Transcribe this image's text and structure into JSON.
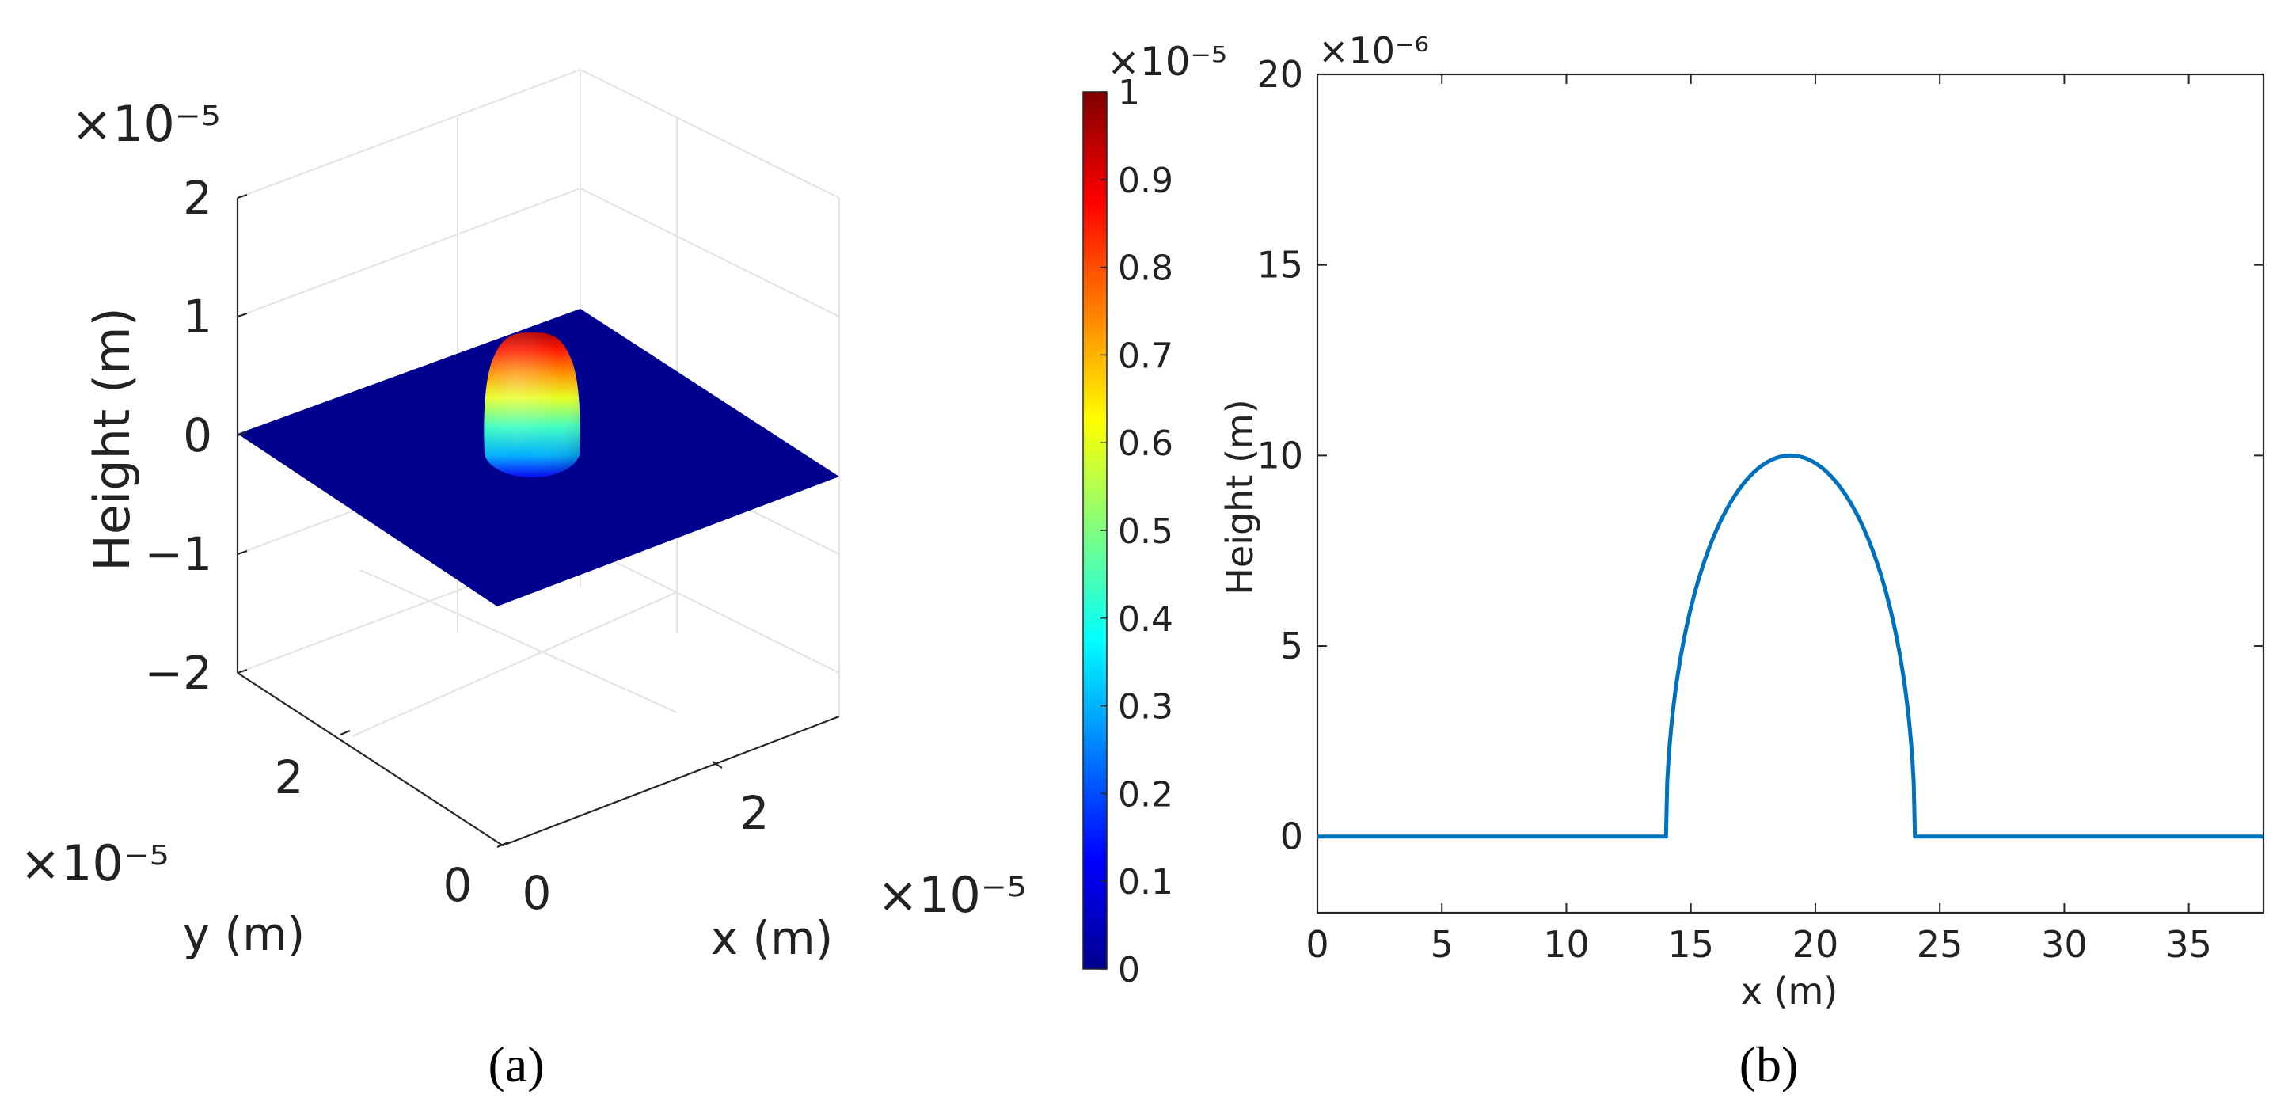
{
  "panel_a": {
    "caption": "(a)",
    "chart_data": {
      "type": "surface",
      "zlabel": "Height (m)",
      "xlabel": "x (m)",
      "ylabel": "y (m)",
      "zlim": [
        -2,
        2
      ],
      "z_ticks": [
        -2,
        -1,
        0,
        1,
        2
      ],
      "z_tick_labels": [
        "−2",
        "−1",
        "0",
        "1",
        "2"
      ],
      "x_ticks": [
        0,
        2
      ],
      "y_ticks": [
        0,
        2
      ],
      "x_tick_labels": [
        "0",
        "2"
      ],
      "y_tick_labels": [
        "0",
        "2"
      ],
      "z_exponent": "×10⁻⁵",
      "x_exponent": "×10⁻⁵",
      "y_exponent": "×10⁻⁵",
      "surface_peak": 1e-05,
      "colormap": "jet",
      "colorbar": {
        "min": 0,
        "max": 1,
        "exponent": "×10⁻⁵",
        "ticks": [
          0,
          0.1,
          0.2,
          0.3,
          0.4,
          0.5,
          0.6,
          0.7,
          0.8,
          0.9,
          1
        ],
        "tick_labels": [
          "0",
          "0.1",
          "0.2",
          "0.3",
          "0.4",
          "0.5",
          "0.6",
          "0.7",
          "0.8",
          "0.9",
          "1"
        ]
      },
      "grid": true
    }
  },
  "panel_b": {
    "caption": "(b)",
    "chart_data": {
      "type": "line",
      "xlabel": "x (m)",
      "ylabel": "Height (m)",
      "y_exponent": "×10⁻⁶",
      "xlim": [
        0,
        38
      ],
      "ylim": [
        -2,
        20
      ],
      "x_ticks": [
        0,
        5,
        10,
        15,
        20,
        25,
        30,
        35
      ],
      "y_ticks": [
        0,
        5,
        10,
        15,
        20
      ],
      "series": [
        {
          "color": "#0072BD",
          "shape": "half-ellipse profile",
          "x": [
            0,
            14,
            14.05,
            14.5,
            15,
            16,
            17,
            18,
            19,
            20,
            21,
            22,
            23,
            23.5,
            23.95,
            24,
            38
          ],
          "y": [
            0,
            0,
            1.0,
            4.4,
            6.0,
            8.0,
            9.2,
            9.8,
            10,
            9.8,
            9.2,
            8.0,
            6.0,
            4.4,
            1.0,
            0,
            0
          ]
        }
      ]
    }
  }
}
